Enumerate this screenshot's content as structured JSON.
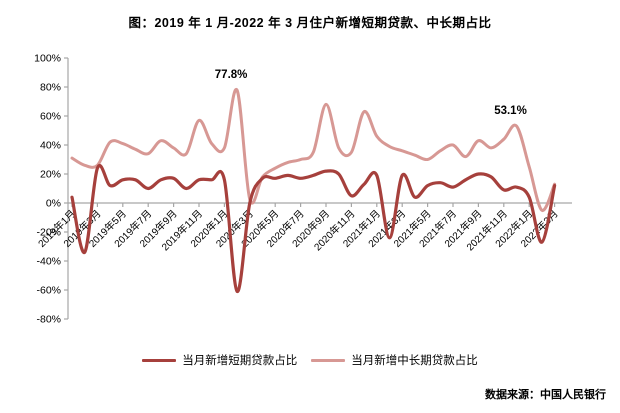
{
  "title": "图：2019 年 1 月-2022 年 3 月住户新增短期贷款、中长期占比",
  "source": "数据来源：中国人民银行",
  "colors": {
    "short_term": "#A6403C",
    "medium_long": "#D79894",
    "axis": "#A6A6A6",
    "tick_text": "#000000",
    "annotation_text": "#000000"
  },
  "legend": {
    "items": [
      {
        "label": "当月新增短期贷款占比",
        "color": "#A6403C"
      },
      {
        "label": "当月新增中长期贷款占比",
        "color": "#D79894"
      }
    ]
  },
  "chart_data": {
    "type": "line",
    "title": "图：2019 年 1 月-2022 年 3 月住户新增短期贷款、中长期占比",
    "xlabel": "",
    "ylabel": "",
    "ylim": [
      -80,
      100
    ],
    "y_tick_step": 20,
    "y_tick_labels": [
      "100%",
      "80%",
      "60%",
      "40%",
      "20%",
      "0%",
      "-20%",
      "-40%",
      "-60%",
      "-80%"
    ],
    "x_label_every": 2,
    "grid": false,
    "smoothed_lines": true,
    "legend_position": "bottom",
    "categories": [
      "2019年1月",
      "2019年2月",
      "2019年3月",
      "2019年4月",
      "2019年5月",
      "2019年6月",
      "2019年7月",
      "2019年8月",
      "2019年9月",
      "2019年10月",
      "2019年11月",
      "2019年12月",
      "2020年1月",
      "2020年2月",
      "2020年3月",
      "2020年4月",
      "2020年5月",
      "2020年6月",
      "2020年7月",
      "2020年8月",
      "2020年9月",
      "2020年10月",
      "2020年11月",
      "2020年12月",
      "2021年1月",
      "2021年2月",
      "2021年3月",
      "2021年4月",
      "2021年5月",
      "2021年6月",
      "2021年7月",
      "2021年8月",
      "2021年9月",
      "2021年10月",
      "2021年11月",
      "2021年12月",
      "2022年1月",
      "2022年2月",
      "2022年3月"
    ],
    "series": [
      {
        "name": "当月新增短期贷款占比",
        "color": "#A6403C",
        "values": [
          4,
          -34,
          24,
          12,
          16,
          16,
          10,
          16,
          17,
          10,
          16,
          16,
          16,
          -61,
          0,
          17,
          17,
          19,
          17,
          19,
          22,
          20,
          5,
          13,
          19,
          -24,
          19,
          4,
          12,
          14,
          11,
          16,
          20,
          18,
          9,
          11,
          4,
          -27,
          12
        ]
      },
      {
        "name": "当月新增中长期贷款占比",
        "color": "#D79894",
        "values": [
          31,
          26,
          26,
          42,
          41,
          37,
          34,
          43,
          38,
          34,
          57,
          41,
          38,
          77.8,
          2.5,
          18,
          24,
          28,
          30,
          35,
          68,
          38,
          35,
          63,
          46,
          39,
          36,
          33,
          30,
          36,
          40,
          32,
          43,
          38,
          44,
          53.1,
          25,
          -5,
          13
        ]
      }
    ],
    "annotations": [
      {
        "text": "77.8%",
        "series_index": 1,
        "point_index": 13
      },
      {
        "text": "53.1%",
        "series_index": 1,
        "point_index": 35
      }
    ]
  }
}
